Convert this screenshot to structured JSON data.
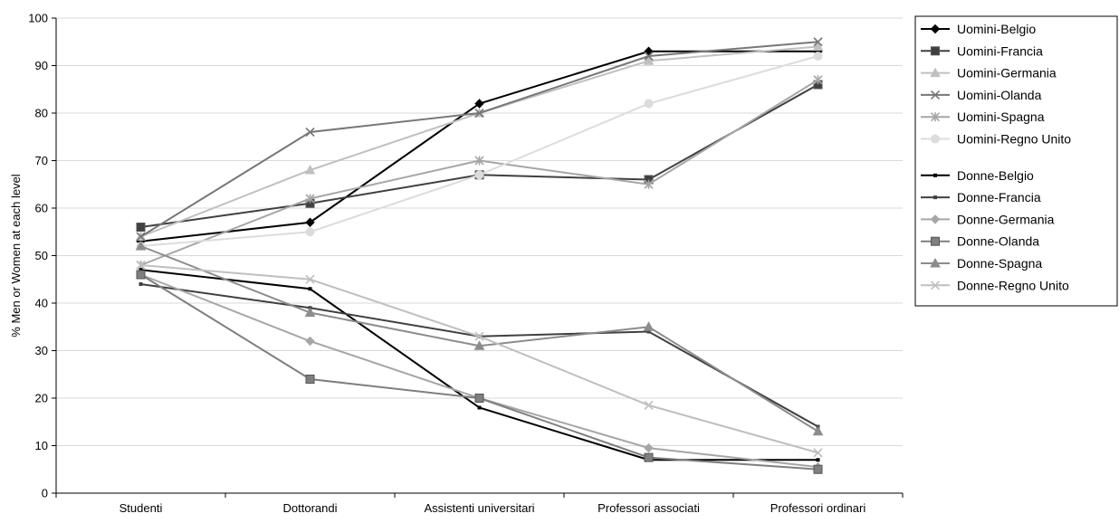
{
  "chart_data": {
    "type": "line",
    "title": "",
    "xlabel": "",
    "ylabel": "% Men or Women at each level",
    "ylim": [
      0,
      100
    ],
    "yticks": [
      0,
      10,
      20,
      30,
      40,
      50,
      60,
      70,
      80,
      90,
      100
    ],
    "grid": true,
    "legend_position": "right",
    "categories": [
      "Studenti",
      "Dottorandi",
      "Assistenti universitari",
      "Professori associati",
      "Professori ordinari"
    ],
    "series": [
      {
        "name": "Uomini-Belgio",
        "values": [
          53,
          57,
          82,
          93,
          93
        ],
        "color": "#000000",
        "marker": "diamond",
        "group": 0
      },
      {
        "name": "Uomini-Francia",
        "values": [
          56,
          61,
          67,
          66,
          86
        ],
        "color": "#404040",
        "marker": "square",
        "group": 0
      },
      {
        "name": "Uomini-Germania",
        "values": [
          54,
          68,
          80,
          91,
          94
        ],
        "color": "#c0c0c0",
        "marker": "triangle",
        "group": 0
      },
      {
        "name": "Uomini-Olanda",
        "values": [
          54,
          76,
          80,
          92,
          95
        ],
        "color": "#777777",
        "marker": "x",
        "group": 0
      },
      {
        "name": "Uomini-Spagna",
        "values": [
          48,
          62,
          70,
          65,
          87
        ],
        "color": "#a6a6a6",
        "marker": "star",
        "group": 0
      },
      {
        "name": "Uomini-Regno Unito",
        "values": [
          52,
          55,
          67,
          82,
          92
        ],
        "color": "#dcdcdc",
        "marker": "circle",
        "group": 0
      },
      {
        "name": "Donne-Belgio",
        "values": [
          47,
          43,
          18,
          7,
          7
        ],
        "color": "#000000",
        "marker": "dash",
        "group": 1
      },
      {
        "name": "Donne-Francia",
        "values": [
          44,
          39,
          33,
          34,
          14
        ],
        "color": "#404040",
        "marker": "dash",
        "group": 1
      },
      {
        "name": "Donne-Germania",
        "values": [
          46,
          32,
          20,
          9.5,
          5.5
        ],
        "color": "#a6a6a6",
        "marker": "diamond",
        "group": 1
      },
      {
        "name": "Donne-Olanda",
        "values": [
          46,
          24,
          20,
          7.5,
          5
        ],
        "color": "#7f7f7f",
        "marker": "square",
        "group": 1
      },
      {
        "name": "Donne-Spagna",
        "values": [
          52,
          38,
          31,
          35,
          13
        ],
        "color": "#8c8c8c",
        "marker": "triangle",
        "group": 1
      },
      {
        "name": "Donne-Regno Unito",
        "values": [
          48,
          45,
          33,
          18.5,
          8.5
        ],
        "color": "#bfbfbf",
        "marker": "x",
        "group": 1
      }
    ]
  }
}
